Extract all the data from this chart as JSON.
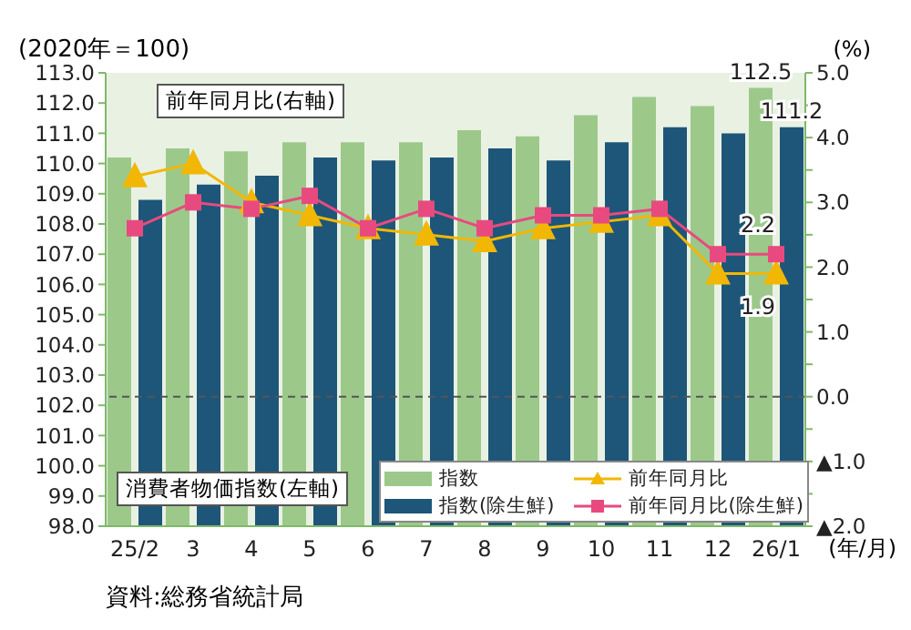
{
  "chart_data": {
    "type": "bar",
    "ylabel": "(2020年＝100)",
    "y2label": "(%)",
    "xlabel": "(年/月)",
    "categories": [
      "25/2",
      "3",
      "4",
      "5",
      "6",
      "7",
      "8",
      "9",
      "10",
      "11",
      "12",
      "26/1"
    ],
    "series": [
      {
        "name": "指数",
        "color": "#9cc98a",
        "values": [
          110.2,
          110.5,
          110.4,
          110.7,
          110.7,
          110.7,
          111.1,
          110.9,
          111.6,
          112.2,
          111.9,
          112.5
        ],
        "value_labels": [
          null,
          null,
          null,
          null,
          null,
          null,
          null,
          null,
          null,
          null,
          null,
          "112.5"
        ]
      },
      {
        "name": "指数(除生鮮)",
        "color": "#1d5679",
        "values": [
          108.8,
          109.3,
          109.6,
          110.2,
          110.1,
          110.2,
          110.5,
          110.1,
          110.7,
          111.2,
          111.0,
          111.2
        ],
        "value_labels": [
          null,
          null,
          null,
          null,
          null,
          null,
          null,
          null,
          null,
          null,
          null,
          "111.2"
        ]
      },
      {
        "name": "前年同月比",
        "type": "line",
        "axis": "y2",
        "marker": "triangle",
        "color": "#f2b705",
        "values": [
          3.4,
          3.6,
          3.0,
          2.8,
          2.6,
          2.5,
          2.4,
          2.6,
          2.7,
          2.8,
          1.9,
          1.9
        ],
        "value_labels": [
          null,
          null,
          null,
          null,
          null,
          null,
          null,
          null,
          null,
          null,
          null,
          "1.9"
        ]
      },
      {
        "name": "前年同月比(除生鮮)",
        "type": "line",
        "axis": "y2",
        "marker": "square",
        "color": "#e84a7f",
        "values": [
          2.6,
          3.0,
          2.9,
          3.1,
          2.6,
          2.9,
          2.6,
          2.8,
          2.8,
          2.9,
          2.2,
          2.2
        ],
        "value_labels": [
          null,
          null,
          null,
          null,
          null,
          null,
          null,
          null,
          null,
          null,
          null,
          "2.2"
        ]
      }
    ],
    "ylim": [
      98,
      113
    ],
    "yticks": [
      {
        "value": 98,
        "label": "98.0"
      },
      {
        "value": 99,
        "label": "99.0"
      },
      {
        "value": 100,
        "label": "100.0"
      },
      {
        "value": 101,
        "label": "101.0"
      },
      {
        "value": 102,
        "label": "102.0"
      },
      {
        "value": 103,
        "label": "103.0"
      },
      {
        "value": 104,
        "label": "104.0"
      },
      {
        "value": 105,
        "label": "105.0"
      },
      {
        "value": 106,
        "label": "106.0"
      },
      {
        "value": 107,
        "label": "107.0"
      },
      {
        "value": 108,
        "label": "108.0"
      },
      {
        "value": 109,
        "label": "109.0"
      },
      {
        "value": 110,
        "label": "110.0"
      },
      {
        "value": 111,
        "label": "111.0"
      },
      {
        "value": 112,
        "label": "112.0"
      },
      {
        "value": 113,
        "label": "113.0"
      }
    ],
    "y2lim": [
      -2,
      5
    ],
    "y2ticks": [
      {
        "value": -2,
        "label": "▲2.0"
      },
      {
        "value": -1.5,
        "label": null
      },
      {
        "value": -1,
        "label": "▲1.0"
      },
      {
        "value": -0.5,
        "label": null
      },
      {
        "value": 0,
        "label": "0.0"
      },
      {
        "value": 0.5,
        "label": null
      },
      {
        "value": 1,
        "label": "1.0"
      },
      {
        "value": 1.5,
        "label": null
      },
      {
        "value": 2,
        "label": "2.0"
      },
      {
        "value": 2.5,
        "label": null
      },
      {
        "value": 3,
        "label": "3.0"
      },
      {
        "value": 3.5,
        "label": null
      },
      {
        "value": 4,
        "label": "4.0"
      },
      {
        "value": 4.5,
        "label": null
      },
      {
        "value": 5,
        "label": "5.0"
      }
    ],
    "ref_lines": [
      {
        "axis": "y2",
        "value": 0,
        "color": "#555555",
        "line_style": "dashed"
      }
    ],
    "legend": "bottom right",
    "annotations": [
      "前年同月比(右軸)",
      "消費者物価指数(左軸)",
      "資料:総務省統計局"
    ]
  }
}
